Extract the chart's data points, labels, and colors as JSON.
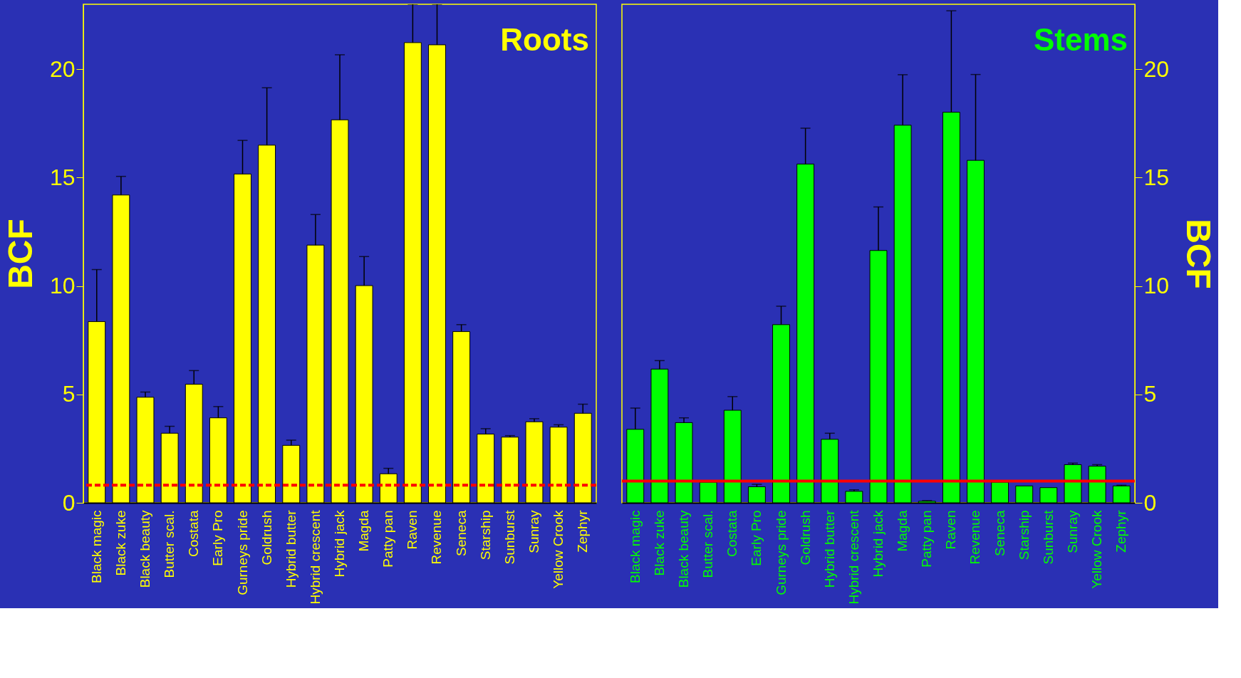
{
  "chart_data": [
    {
      "type": "bar",
      "title": "Roots",
      "ylabel": "BCF",
      "color": "#ffff00",
      "categories": [
        "Black magic",
        "Black zuke",
        "Black beauty",
        "Butter scal.",
        "Costata",
        "Early Pro",
        "Gurneys pride",
        "Goldrush",
        "Hybrid butter",
        "Hybrid crescent",
        "Hybrid jack",
        "Magda",
        "Patty pan",
        "Raven",
        "Revenue",
        "Seneca",
        "Starship",
        "Sunburst",
        "Sunray",
        "Yellow Crook",
        "Zephyr"
      ],
      "values": [
        8.36,
        14.2,
        4.87,
        3.21,
        5.47,
        3.92,
        15.17,
        16.5,
        2.65,
        11.89,
        17.67,
        10.02,
        1.34,
        21.23,
        21.13,
        7.9,
        3.17,
        3.03,
        3.74,
        3.49,
        4.13
      ],
      "errors": [
        [
          8.36,
          10.76
        ],
        [
          14.2,
          15.06
        ],
        [
          4.87,
          5.11
        ],
        [
          3.21,
          3.53
        ],
        [
          5.47,
          6.1
        ],
        [
          3.92,
          4.44
        ],
        [
          15.17,
          16.72
        ],
        [
          16.5,
          19.15
        ],
        [
          2.65,
          2.89
        ],
        [
          11.89,
          13.3
        ],
        [
          17.67,
          20.67
        ],
        [
          10.02,
          11.36
        ],
        [
          1.34,
          1.59
        ],
        [
          21.23,
          23
        ],
        [
          21.13,
          23
        ],
        [
          7.9,
          8.22
        ],
        [
          3.17,
          3.42
        ],
        [
          3.03,
          3.1
        ],
        [
          3.74,
          3.88
        ],
        [
          3.49,
          3.6
        ],
        [
          4.13,
          4.55
        ]
      ],
      "ylim": [
        0,
        23
      ],
      "yticks": [
        0,
        5,
        10,
        15,
        20
      ],
      "ref_lines": [
        {
          "axis": "y",
          "value": 0.81,
          "color": "#ff0000",
          "line_style": "dashed"
        }
      ]
    },
    {
      "type": "bar",
      "title": "Stems",
      "ylabel": "BCF",
      "color": "#00ff00",
      "categories": [
        "Black magic",
        "Black zuke",
        "Black beauty",
        "Butter scal.",
        "Costata",
        "Early Pro",
        "Gurneys pride",
        "Goldrush",
        "Hybrid butter",
        "Hybrid crescent",
        "Hybrid jack",
        "Magda",
        "Patty pan",
        "Raven",
        "Revenue",
        "Seneca",
        "Starship",
        "Sunburst",
        "Sunray",
        "Yellow Crook",
        "Zephyr"
      ],
      "values": [
        3.39,
        6.17,
        3.7,
        0.95,
        4.27,
        0.74,
        8.22,
        15.63,
        2.93,
        0.53,
        11.64,
        17.42,
        0.07,
        18.02,
        15.8,
        0.95,
        0.78,
        0.7,
        1.76,
        1.69,
        0.78
      ],
      "errors": [
        [
          3.39,
          4.37
        ],
        [
          6.17,
          6.56
        ],
        [
          3.7,
          3.92
        ],
        null,
        [
          4.27,
          4.9
        ],
        [
          0.74,
          0.85
        ],
        [
          8.22,
          9.07
        ],
        [
          15.63,
          17.28
        ],
        [
          2.93,
          3.21
        ],
        [
          0.53,
          0.6
        ],
        [
          11.64,
          13.65
        ],
        [
          17.42,
          19.75
        ],
        [
          0.07,
          0.1
        ],
        [
          18.02,
          22.7
        ],
        [
          15.8,
          19.76
        ],
        null,
        null,
        null,
        [
          1.76,
          1.83
        ],
        [
          1.69,
          1.76
        ],
        [
          0.78,
          0.81
        ]
      ],
      "ylim": [
        0,
        23
      ],
      "yticks": [
        0,
        5,
        10,
        15,
        20
      ],
      "ref_lines": [
        {
          "axis": "y",
          "value": 1.0,
          "color": "#ff0000",
          "line_style": "solid"
        }
      ]
    }
  ]
}
